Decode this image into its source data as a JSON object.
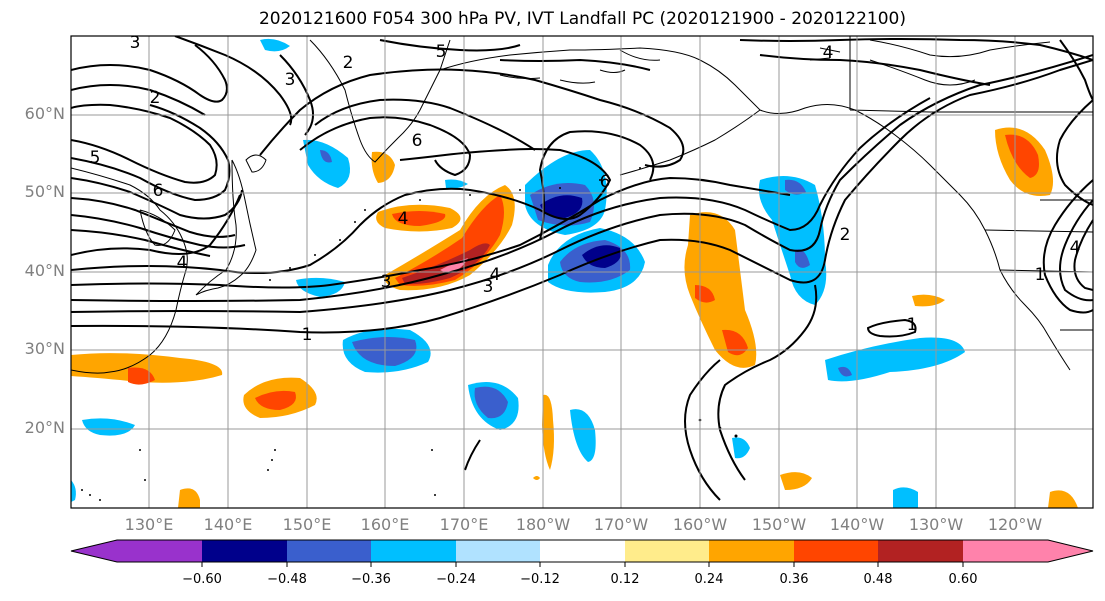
{
  "title": "2020121600 F054 300 hPa PV, IVT Landfall PC (2020121900 - 2020122100)",
  "lat_labels": [
    "60°N",
    "50°N",
    "40°N",
    "30°N",
    "20°N"
  ],
  "lon_labels": [
    "130°E",
    "140°E",
    "150°E",
    "160°E",
    "170°E",
    "180°W",
    "170°W",
    "160°W",
    "150°W",
    "140°W",
    "130°W",
    "120°W"
  ],
  "colorbar": {
    "tick_labels": [
      "−0.60",
      "−0.48",
      "−0.36",
      "−0.24",
      "−0.12",
      "0.12",
      "0.24",
      "0.36",
      "0.48",
      "0.60"
    ],
    "colors": [
      "#9932cc",
      "#00008b",
      "#3a5fcd",
      "#00bfff",
      "#b0e2ff",
      "#ffffff",
      "#ffec8b",
      "#ffa500",
      "#ff4500",
      "#b22222",
      "#ff82ab"
    ]
  },
  "contour_labels": [
    "1",
    "2",
    "3",
    "4",
    "5",
    "6",
    "1",
    "2",
    "3",
    "4",
    "5",
    "6",
    "2",
    "3",
    "4",
    "4",
    "6",
    "1",
    "4",
    "3"
  ],
  "map_extent": {
    "lon": [
      120,
      250
    ],
    "lat": [
      10,
      70
    ]
  }
}
